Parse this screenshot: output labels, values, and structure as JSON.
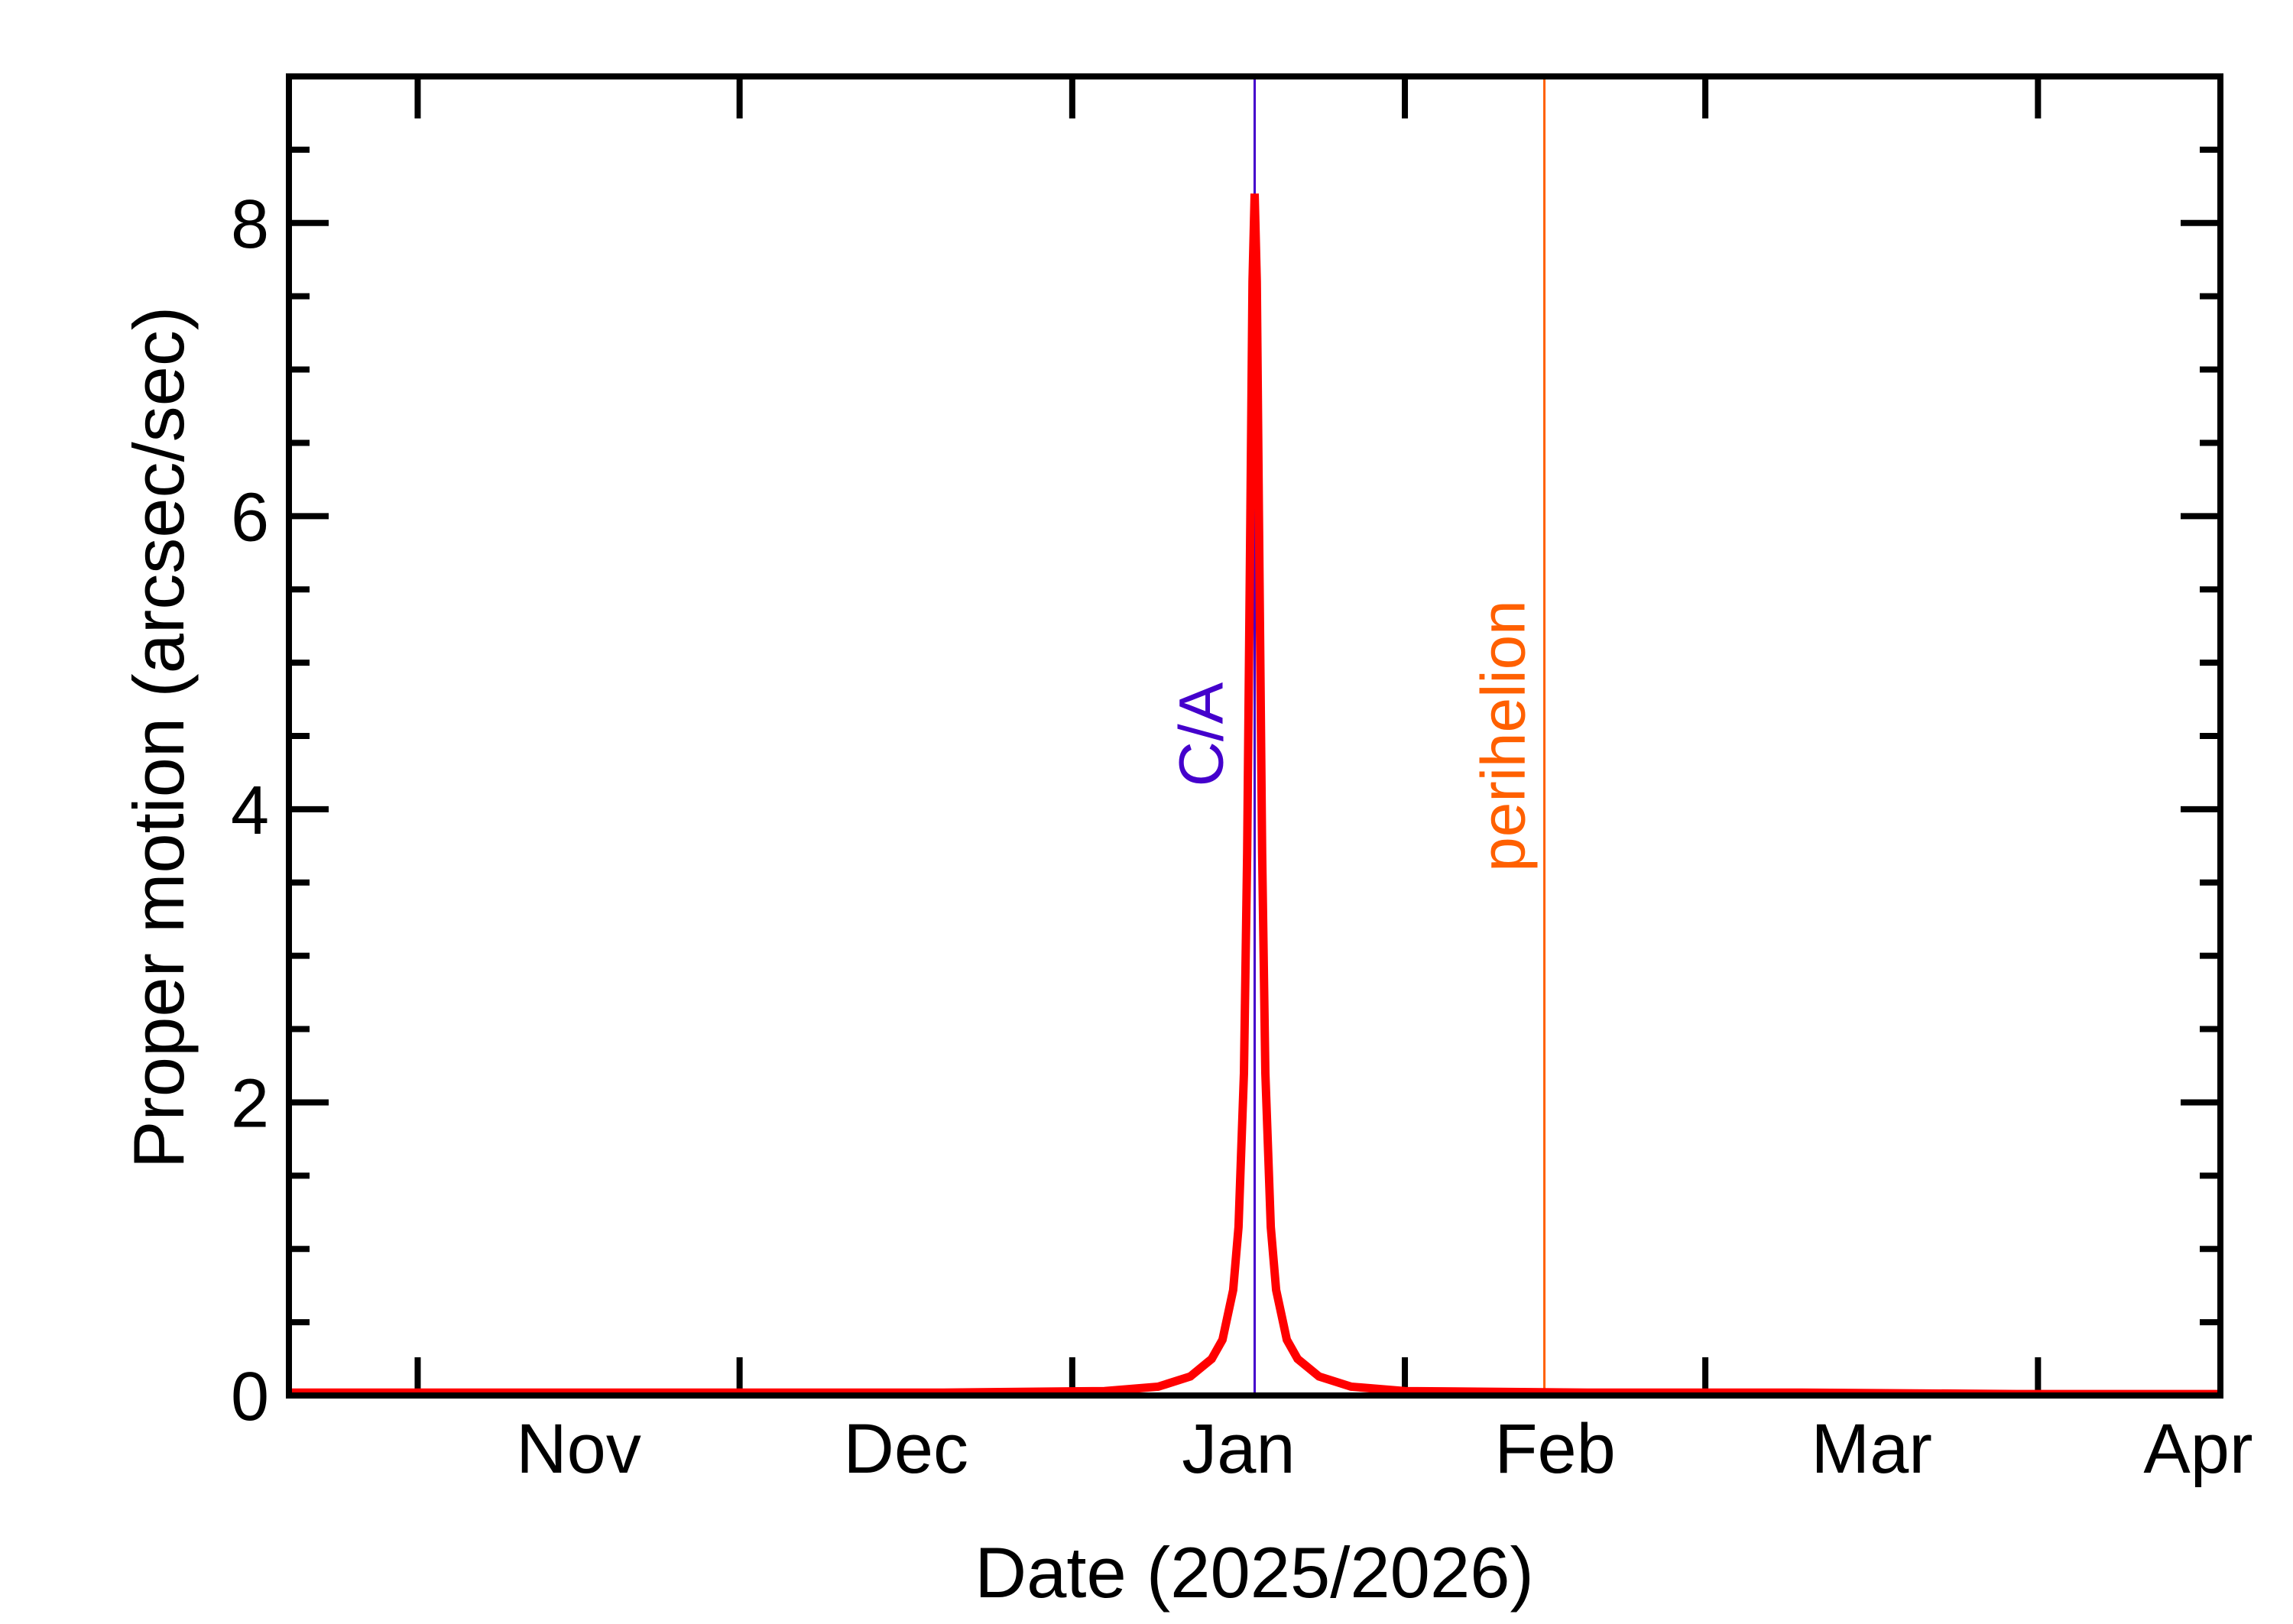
{
  "chart_data": {
    "type": "line",
    "title": "",
    "xlabel": "Date (2025/2026)",
    "ylabel": "Proper motion (arcsec/sec)",
    "x_unit": "days since 2025-10-01",
    "xlim": [
      19,
      199
    ],
    "ylim": [
      0,
      9
    ],
    "grid": false,
    "legend": null,
    "x_month_labels": [
      {
        "label": "Nov",
        "start_day": 31,
        "end_day": 61
      },
      {
        "label": "Dec",
        "start_day": 61,
        "end_day": 92
      },
      {
        "label": "Jan",
        "start_day": 92,
        "end_day": 123
      },
      {
        "label": "Feb",
        "start_day": 123,
        "end_day": 151
      },
      {
        "label": "Mar",
        "start_day": 151,
        "end_day": 182
      },
      {
        "label": "Apr",
        "start_day": 182,
        "end_day": 212
      }
    ],
    "x_ticks_days": [
      31,
      61,
      92,
      123,
      151,
      182
    ],
    "y_ticks": [
      0,
      2,
      4,
      6,
      8
    ],
    "y_tick_labels": [
      "0",
      "2",
      "4",
      "6",
      "8"
    ],
    "y_minor_step": 0.5,
    "series": [
      {
        "name": "Proper motion",
        "color": "#ff0000",
        "points": [
          [
            19,
            0.02
          ],
          [
            40,
            0.02
          ],
          [
            60,
            0.02
          ],
          [
            80,
            0.02
          ],
          [
            95,
            0.03
          ],
          [
            100,
            0.06
          ],
          [
            103,
            0.13
          ],
          [
            105,
            0.25
          ],
          [
            106,
            0.38
          ],
          [
            107,
            0.72
          ],
          [
            107.5,
            1.15
          ],
          [
            108,
            2.2
          ],
          [
            108.3,
            3.7
          ],
          [
            108.6,
            6.0
          ],
          [
            108.8,
            7.6
          ],
          [
            109,
            8.2
          ],
          [
            109.2,
            7.6
          ],
          [
            109.4,
            6.0
          ],
          [
            109.7,
            3.7
          ],
          [
            110,
            2.2
          ],
          [
            110.5,
            1.15
          ],
          [
            111,
            0.72
          ],
          [
            112,
            0.38
          ],
          [
            113,
            0.25
          ],
          [
            115,
            0.13
          ],
          [
            118,
            0.06
          ],
          [
            123,
            0.03
          ],
          [
            140,
            0.02
          ],
          [
            160,
            0.02
          ],
          [
            180,
            0.01
          ],
          [
            199,
            0.01
          ]
        ]
      }
    ],
    "vertical_markers": [
      {
        "label": "C/A",
        "day": 109,
        "color": "#4400cc",
        "date": "2026-01-18"
      },
      {
        "label": "perihelion",
        "day": 136,
        "color": "#ff6000",
        "date": "2026-02-14"
      }
    ]
  }
}
